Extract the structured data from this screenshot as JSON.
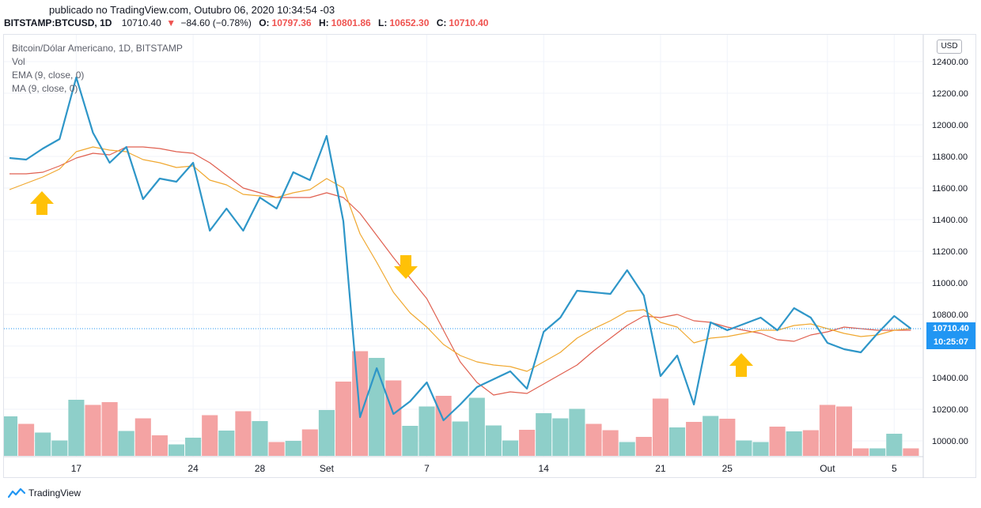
{
  "header": {
    "published": "publicado no TradingView.com, Outubro 06, 2020 10:34:54 -03",
    "symbol": "BITSTAMP:BTCUSD, 1D",
    "last": "10710.40",
    "change": "−84.60 (−0.78%)",
    "o_label": "O:",
    "o_value": "10797.36",
    "h_label": "H:",
    "h_value": "10801.86",
    "l_label": "L:",
    "l_value": "10652.30",
    "c_label": "C:",
    "c_value": "10710.40"
  },
  "legend": {
    "title": "Bitcoin/Dólar Americano, 1D, BITSTAMP",
    "vol": "Vol",
    "ema": "EMA (9, close, 0)",
    "ma": "MA (9, close, 0)"
  },
  "axis": {
    "currency": "USD",
    "price_tag": "10710.40",
    "time_tag": "10:25:07"
  },
  "footer": {
    "brand": "TradingView"
  },
  "colors": {
    "price_line": "#2e96c8",
    "ema_line": "#f0a830",
    "ma_line": "#e06050",
    "vol_up": "#8ecfc9",
    "vol_down": "#f4a3a3",
    "arrow": "#ffc107",
    "tag_bg": "#2196f3"
  },
  "chart_data": {
    "type": "line",
    "y_ticks": [
      10000,
      10200,
      10400,
      10600,
      10800,
      11000,
      11200,
      11400,
      11600,
      11800,
      12000,
      12200,
      12400
    ],
    "y_tick_labels": [
      "10000.00",
      "10200.00",
      "10400.00",
      "10600.00",
      "10800.00",
      "11000.00",
      "11200.00",
      "11400.00",
      "11600.00",
      "11800.00",
      "12000.00",
      "12200.00",
      "12400.00"
    ],
    "ylim": [
      9900,
      12500
    ],
    "x_ticks": [
      {
        "label": "17",
        "index": 4
      },
      {
        "label": "24",
        "index": 11
      },
      {
        "label": "28",
        "index": 15
      },
      {
        "label": "Set",
        "index": 19
      },
      {
        "label": "7",
        "index": 25
      },
      {
        "label": "14",
        "index": 32
      },
      {
        "label": "21",
        "index": 39
      },
      {
        "label": "25",
        "index": 43
      },
      {
        "label": "Out",
        "index": 49
      },
      {
        "label": "5",
        "index": 53
      }
    ],
    "series": [
      {
        "name": "BITSTAMP:BTCUSD",
        "values": [
          11790,
          11780,
          11850,
          11910,
          12300,
          11950,
          11760,
          11860,
          11530,
          11660,
          11640,
          11760,
          11330,
          11470,
          11330,
          11540,
          11470,
          11700,
          11650,
          11930,
          11390,
          10150,
          10460,
          10170,
          10250,
          10370,
          10130,
          10230,
          10340,
          10390,
          10440,
          10330,
          10690,
          10780,
          10950,
          10940,
          10930,
          11080,
          10920,
          10410,
          10540,
          10230,
          10750,
          10700,
          10740,
          10780,
          10700,
          10840,
          10780,
          10620,
          10580,
          10560,
          10680,
          10790,
          10710
        ]
      },
      {
        "name": "EMA (9, close, 0)",
        "values": [
          11590,
          11630,
          11670,
          11720,
          11830,
          11860,
          11840,
          11830,
          11780,
          11760,
          11730,
          11740,
          11650,
          11620,
          11560,
          11550,
          11540,
          11570,
          11590,
          11660,
          11600,
          11310,
          11130,
          10940,
          10810,
          10720,
          10610,
          10540,
          10500,
          10480,
          10470,
          10440,
          10500,
          10560,
          10650,
          10710,
          10760,
          10820,
          10830,
          10750,
          10720,
          10620,
          10650,
          10660,
          10680,
          10700,
          10700,
          10730,
          10740,
          10710,
          10680,
          10660,
          10670,
          10700,
          10710
        ]
      },
      {
        "name": "MA (9, close, 0)",
        "values": [
          11690,
          11690,
          11700,
          11740,
          11790,
          11820,
          11810,
          11860,
          11860,
          11850,
          11830,
          11820,
          11760,
          11680,
          11600,
          11570,
          11540,
          11540,
          11540,
          11570,
          11540,
          11440,
          11300,
          11160,
          11030,
          10900,
          10700,
          10500,
          10370,
          10290,
          10310,
          10300,
          10360,
          10420,
          10480,
          10570,
          10650,
          10730,
          10790,
          10780,
          10800,
          10760,
          10750,
          10720,
          10700,
          10680,
          10640,
          10630,
          10670,
          10690,
          10720,
          10710,
          10700,
          10700,
          10700
        ]
      },
      {
        "name": "Vol",
        "type": "bar",
        "values": [
          1.0,
          0.81,
          0.59,
          0.39,
          1.42,
          1.29,
          1.36,
          0.63,
          0.95,
          0.52,
          0.29,
          0.46,
          1.03,
          0.64,
          1.13,
          0.88,
          0.35,
          0.38,
          0.67,
          1.16,
          1.88,
          2.65,
          2.48,
          1.91,
          0.76,
          1.25,
          1.52,
          0.87,
          1.47,
          0.77,
          0.39,
          0.66,
          1.08,
          0.95,
          1.19,
          0.81,
          0.65,
          0.35,
          0.48,
          1.45,
          0.72,
          0.86,
          1.01,
          0.94,
          0.39,
          0.35,
          0.74,
          0.62,
          0.65,
          1.29,
          1.25,
          0.19,
          0.19,
          0.56,
          0.19
        ],
        "up": [
          true,
          false,
          true,
          true,
          true,
          false,
          false,
          true,
          false,
          false,
          true,
          true,
          false,
          true,
          false,
          true,
          false,
          true,
          false,
          true,
          false,
          false,
          true,
          false,
          true,
          true,
          false,
          true,
          true,
          true,
          true,
          false,
          true,
          true,
          true,
          false,
          false,
          true,
          false,
          false,
          true,
          false,
          true,
          false,
          true,
          true,
          false,
          true,
          false,
          false,
          false,
          false,
          true,
          true,
          false
        ]
      }
    ]
  }
}
